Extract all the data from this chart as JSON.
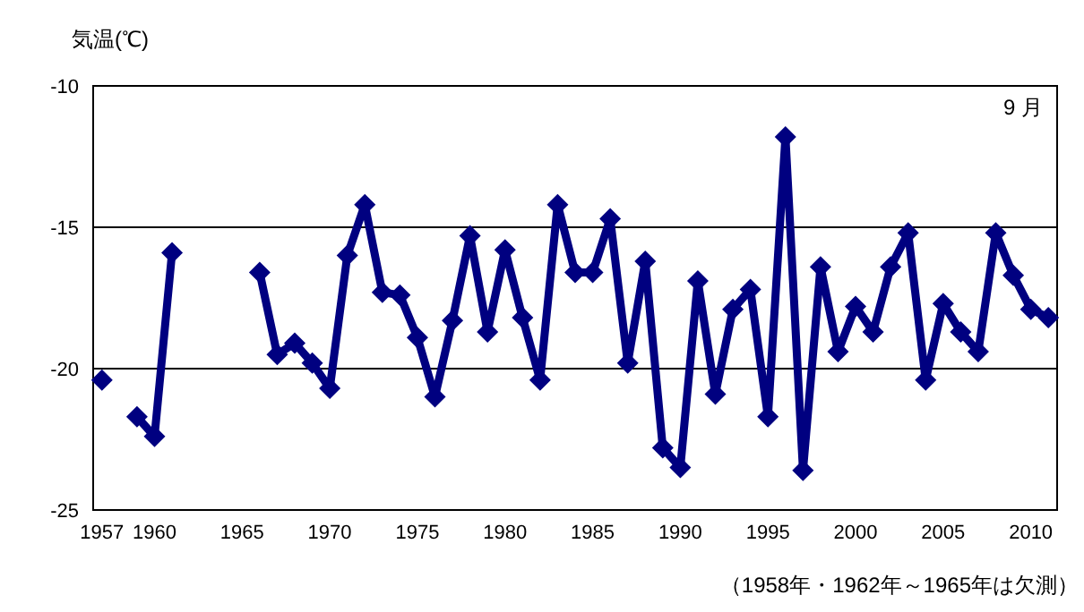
{
  "chart_data": {
    "type": "line",
    "title": "9 月",
    "ylabel": "気温(℃)",
    "annotations": [
      "（1958年・1962年～1965年は欠測）"
    ],
    "x": [
      1957,
      1958,
      1959,
      1960,
      1961,
      1962,
      1963,
      1964,
      1965,
      1966,
      1967,
      1968,
      1969,
      1970,
      1971,
      1972,
      1973,
      1974,
      1975,
      1976,
      1977,
      1978,
      1979,
      1980,
      1981,
      1982,
      1983,
      1984,
      1985,
      1986,
      1987,
      1988,
      1989,
      1990,
      1991,
      1992,
      1993,
      1994,
      1995,
      1996,
      1997,
      1998,
      1999,
      2000,
      2001,
      2002,
      2003,
      2004,
      2005,
      2006,
      2007,
      2008,
      2009,
      2010,
      2011
    ],
    "series": [
      {
        "color": "#000080",
        "values": [
          -20.4,
          null,
          -21.7,
          -22.4,
          -15.9,
          null,
          null,
          null,
          null,
          -16.6,
          -19.5,
          -19.1,
          -19.8,
          -20.7,
          -16.0,
          -14.2,
          -17.3,
          -17.4,
          -18.9,
          -21.0,
          -18.3,
          -15.3,
          -18.7,
          -15.8,
          -18.2,
          -20.4,
          -14.2,
          -16.6,
          -16.6,
          -14.7,
          -19.8,
          -16.2,
          -22.8,
          -23.5,
          -16.9,
          -20.9,
          -17.9,
          -17.2,
          -21.7,
          -11.8,
          -23.6,
          -16.4,
          -19.4,
          -17.8,
          -18.7,
          -16.4,
          -15.2,
          -20.4,
          -17.7,
          -18.7,
          -19.4,
          -15.2,
          -16.7,
          -17.9,
          -18.2
        ]
      }
    ],
    "xlim": [
      1956.5,
      2011.5
    ],
    "xticks": [
      1957,
      1960,
      1965,
      1970,
      1975,
      1980,
      1985,
      1990,
      1995,
      2000,
      2005,
      2010
    ],
    "ylim": [
      -25,
      -10
    ],
    "yticks": [
      -25,
      -20,
      -15,
      -10
    ],
    "grid": "y",
    "marker": "diamond",
    "line_style": "solid"
  }
}
